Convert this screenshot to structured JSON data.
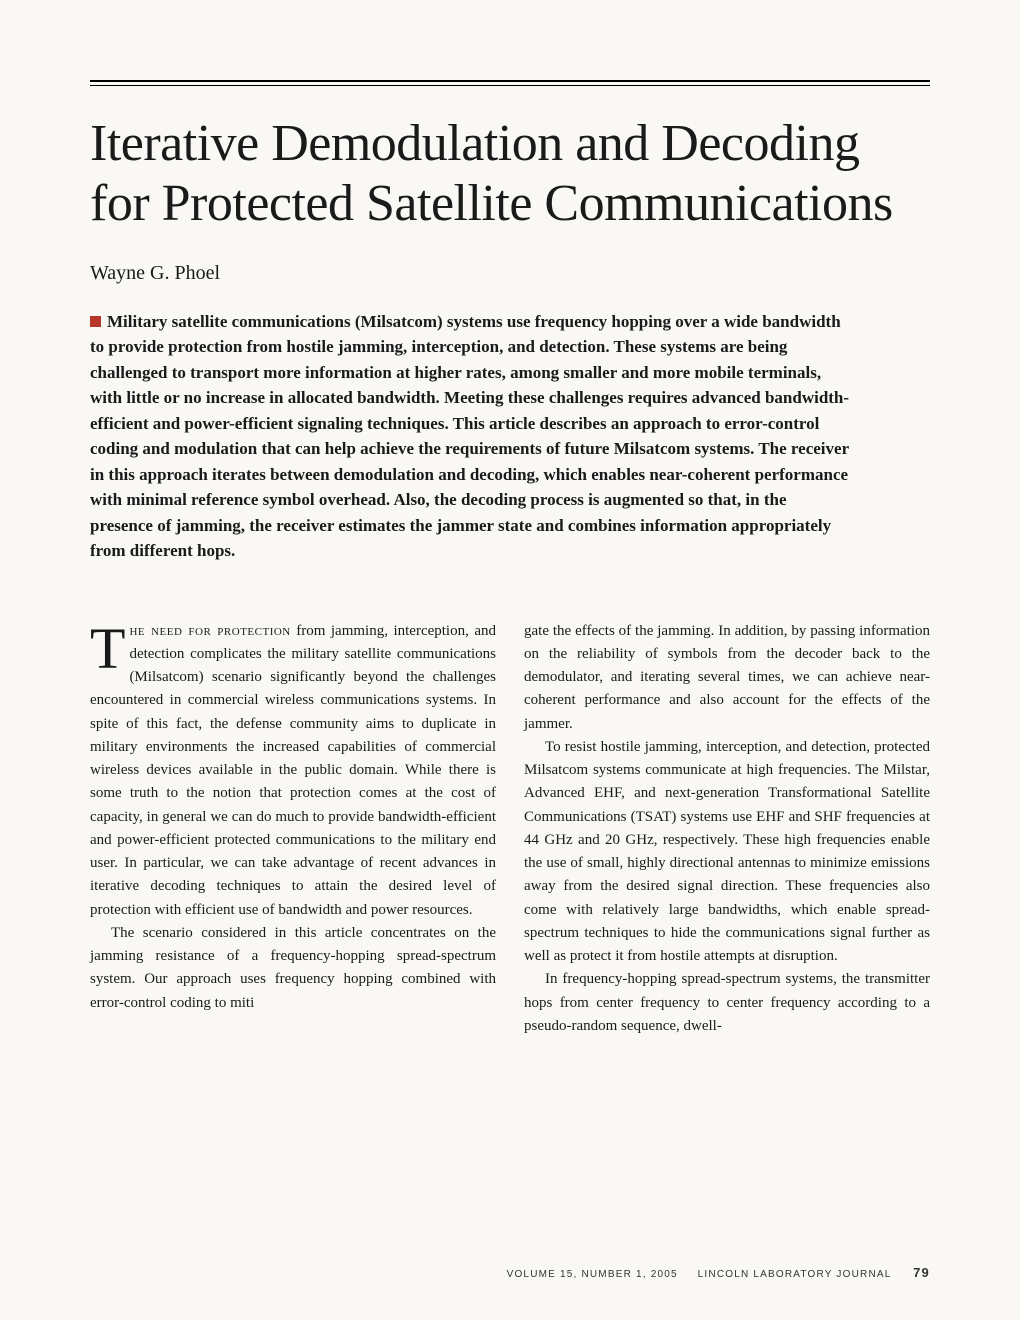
{
  "title": "Iterative Demodulation and Decoding for Protected Satellite Communications",
  "author": "Wayne G. Phoel",
  "abstract": "Military satellite communications (Milsatcom) systems use frequency hopping over a wide bandwidth to provide protection from hostile jamming, interception, and detection. These systems are being challenged to transport more information at higher rates, among smaller and more mobile terminals, with little or no increase in allocated bandwidth. Meeting these challenges requires advanced bandwidth-efficient and power-efficient signaling techniques. This article describes an approach to error-control coding and modulation that can help achieve the requirements of future Milsatcom systems. The receiver in this approach iterates between demodulation and decoding, which enables near-coherent performance with minimal reference symbol overhead. Also, the decoding process is augmented so that, in the presence of jamming, the receiver estimates the jammer state and combines information appropriately from different hops.",
  "body": {
    "dropcap": "T",
    "p1_lead": "he need for protection",
    "p1_rest": " from jamming, interception, and detection complicates the military satellite communications (Milsatcom) scenario significantly beyond the challenges encountered in commercial wireless communications systems. In spite of this fact, the defense community aims to duplicate in military environments the increased capabilities of commercial wireless devices available in the public domain. While there is some truth to the notion that protection comes at the cost of capacity, in general we can do much to provide bandwidth-efficient and power-efficient protected communications to the military end user. In particular, we can take advantage of recent advances in iterative decoding techniques to attain the desired level of protection with efficient use of bandwidth and power resources.",
    "p2": "The scenario considered in this article concentrates on the jamming resistance of a frequency-hopping spread-spectrum system. Our approach uses frequency hopping combined with error-control coding to miti",
    "p3": "gate the effects of the jamming. In addition, by passing information on the reliability of symbols from the decoder back to the demodulator, and iterating several times, we can achieve near-coherent performance and also account for the effects of the jammer.",
    "p4": "To resist hostile jamming, interception, and detection, protected Milsatcom systems communicate at high frequencies. The Milstar, Advanced EHF, and next-generation Transformational Satellite Communications (TSAT) systems use EHF and SHF frequencies at 44 GHz and 20 GHz, respectively. These high frequencies enable the use of small, highly directional antennas to minimize emissions away from the desired signal direction. These frequencies also come with relatively large bandwidths, which enable spread-spectrum techniques to hide the communications signal further as well as protect it from hostile attempts at disruption.",
    "p5": "In frequency-hopping spread-spectrum systems, the transmitter hops from center frequency to center frequency according to a pseudo-random sequence, dwell-"
  },
  "footer": {
    "volume": "VOLUME 15, NUMBER 1, 2005",
    "journal": "LINCOLN LABORATORY JOURNAL",
    "page": "79"
  },
  "colors": {
    "marker": "#b8352a",
    "background": "#f9f8f5",
    "text": "#1a1a1a"
  },
  "typography": {
    "title_fontsize": 52,
    "author_fontsize": 20,
    "abstract_fontsize": 17,
    "body_fontsize": 15,
    "dropcap_fontsize": 58,
    "footer_fontsize": 10
  }
}
